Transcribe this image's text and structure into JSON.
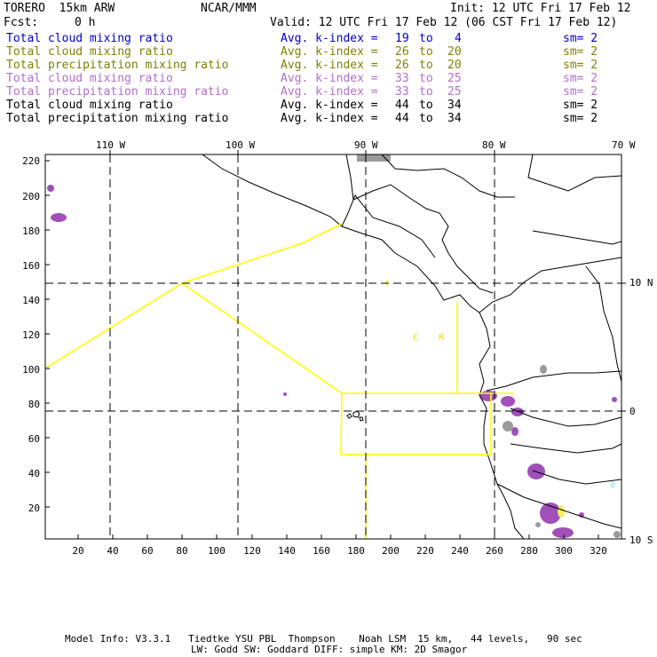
{
  "header": {
    "model": "TORERO  15km ARW",
    "org": "NCAR/MMM",
    "init": "Init: 12 UTC Fri 17 Feb 12",
    "fcst_label": "Fcst:",
    "fcst_value": "0 h",
    "valid": "Valid: 12 UTC Fri 17 Feb 12 (06 CST Fri 17 Feb 12)"
  },
  "legend": [
    {
      "field": "Total cloud mixing ratio",
      "kindex": "Avg. k-index =",
      "from": "19",
      "to_word": "to",
      "to": "4",
      "sm": "sm= 2",
      "color": "#0000cc"
    },
    {
      "field": "Total cloud mixing ratio",
      "kindex": "Avg. k-index =",
      "from": "26",
      "to_word": "to",
      "to": "20",
      "sm": "sm= 2",
      "color": "#808000"
    },
    {
      "field": "Total precipitation mixing ratio",
      "kindex": "Avg. k-index =",
      "from": "26",
      "to_word": "to",
      "to": "20",
      "sm": "sm= 2",
      "color": "#808000"
    },
    {
      "field": "Total cloud mixing ratio",
      "kindex": "Avg. k-index =",
      "from": "33",
      "to_word": "to",
      "to": "25",
      "sm": "sm= 2",
      "color": "#b070c8"
    },
    {
      "field": "Total precipitation mixing ratio",
      "kindex": "Avg. k-index =",
      "from": "33",
      "to_word": "to",
      "to": "25",
      "sm": "sm= 2",
      "color": "#b070c8"
    },
    {
      "field": "Total cloud mixing ratio",
      "kindex": "Avg. k-index =",
      "from": "44",
      "to_word": "to",
      "to": "34",
      "sm": "sm= 2",
      "color": "#000000"
    },
    {
      "field": "Total precipitation mixing ratio",
      "kindex": "Avg. k-index =",
      "from": "44",
      "to_word": "to",
      "to": "34",
      "sm": "sm= 2",
      "color": "#000000"
    }
  ],
  "map": {
    "lon_labels": [
      "110 W",
      "100 W",
      "90 W",
      "80 W",
      "70 W"
    ],
    "lat_labels": [
      "10 N",
      "0",
      "10 S"
    ],
    "x_ticks": [
      "20",
      "40",
      "60",
      "80",
      "100",
      "120",
      "140",
      "160",
      "180",
      "200",
      "220",
      "240",
      "260",
      "280",
      "300",
      "320"
    ],
    "y_ticks": [
      "220",
      "200",
      "180",
      "160",
      "140",
      "120",
      "100",
      "80",
      "60",
      "40",
      "20"
    ],
    "region_labels": [
      "C",
      "R"
    ],
    "colors": {
      "boundary": "#ffff00",
      "cloud": "#a050b8",
      "precip_gray": "#9a9a9a",
      "coast": "#000000"
    }
  },
  "footer": {
    "line1": "Model Info: V3.3.1   Tiedtke YSU PBL  Thompson    Noah LSM  15 km,   44 levels,   90 sec",
    "line2": "LW: Godd SW: Goddard DIFF: simple KM: 2D Smagor"
  }
}
